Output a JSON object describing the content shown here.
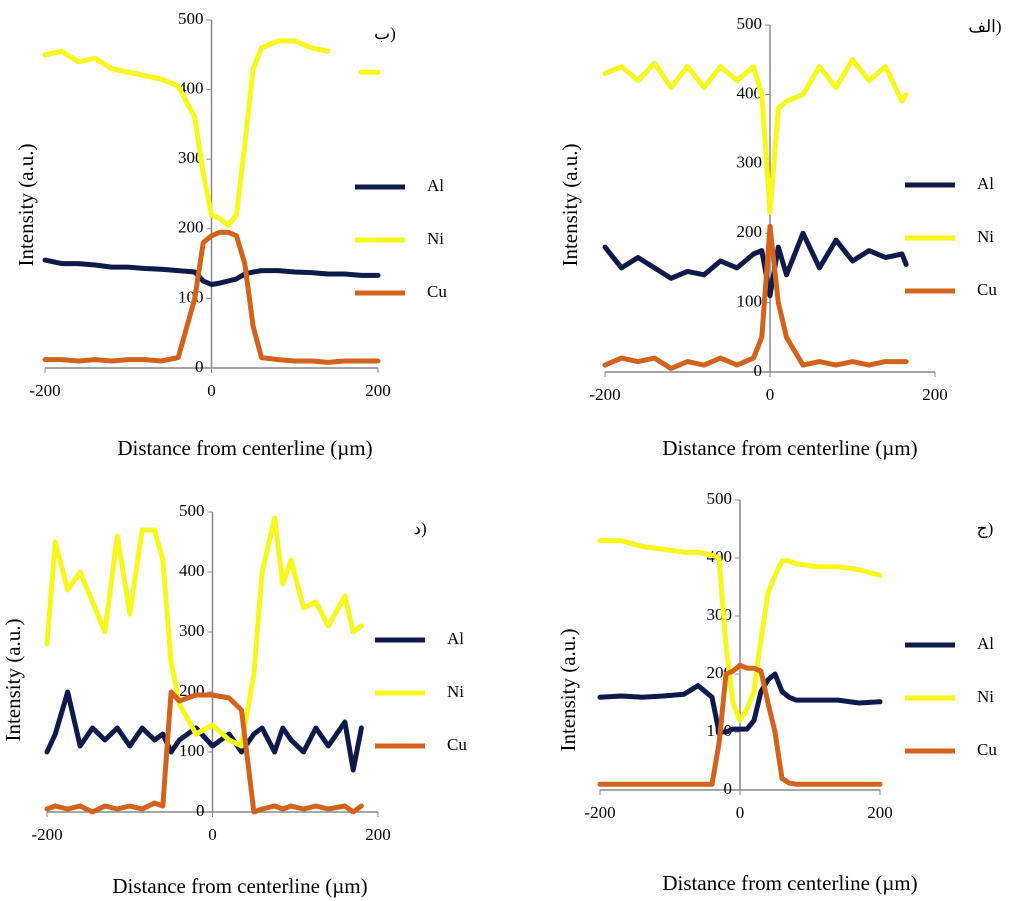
{
  "chart_data": [
    {
      "type": "line",
      "title": "ب)",
      "xlabel": "Distance from centerline (µm)",
      "ylabel": "Intensity (a.u.)",
      "xlim": [
        -200,
        200
      ],
      "xticks": [
        -200,
        0,
        200
      ],
      "ylim": [
        0,
        500
      ],
      "yticks": [
        0,
        100,
        200,
        300,
        400,
        500
      ],
      "grid": false,
      "x": [
        -200,
        -180,
        -160,
        -140,
        -120,
        -100,
        -80,
        -60,
        -40,
        -20,
        -10,
        0,
        10,
        20,
        30,
        40,
        50,
        60,
        80,
        100,
        120,
        140,
        160,
        180,
        200
      ],
      "series": [
        {
          "name": "Al",
          "color": "#0d1a4a",
          "values": [
            155,
            150,
            150,
            148,
            145,
            145,
            143,
            142,
            140,
            138,
            125,
            120,
            122,
            125,
            128,
            135,
            138,
            140,
            140,
            138,
            137,
            135,
            135,
            133,
            133
          ]
        },
        {
          "name": "Ni",
          "color": "#f7f71e",
          "values": [
            450,
            455,
            440,
            445,
            430,
            425,
            420,
            415,
            405,
            360,
            280,
            220,
            215,
            205,
            220,
            320,
            430,
            460,
            470,
            470,
            460,
            455,
            null,
            425,
            425
          ]
        },
        {
          "name": "Cu",
          "color": "#d2621c",
          "values": [
            12,
            12,
            10,
            12,
            10,
            12,
            12,
            10,
            15,
            100,
            180,
            190,
            195,
            195,
            190,
            150,
            60,
            15,
            12,
            10,
            10,
            8,
            10,
            10,
            10
          ]
        }
      ]
    },
    {
      "type": "line",
      "title": "الف)",
      "xlabel": "Distance from centerline (µm)",
      "ylabel": "Intensity (a.u.)",
      "xlim": [
        -200,
        200
      ],
      "xticks": [
        -200,
        0,
        200
      ],
      "ylim": [
        0,
        500
      ],
      "yticks": [
        0,
        100,
        200,
        300,
        400,
        500
      ],
      "grid": false,
      "x": [
        -200,
        -180,
        -160,
        -140,
        -120,
        -100,
        -80,
        -60,
        -40,
        -20,
        -10,
        0,
        10,
        20,
        40,
        60,
        80,
        100,
        120,
        140,
        160,
        165
      ],
      "series": [
        {
          "name": "Al",
          "color": "#0d1a4a",
          "values": [
            180,
            150,
            165,
            150,
            135,
            145,
            140,
            160,
            150,
            170,
            175,
            110,
            180,
            140,
            200,
            150,
            190,
            160,
            175,
            165,
            170,
            155
          ]
        },
        {
          "name": "Ni",
          "color": "#f7f71e",
          "values": [
            430,
            440,
            420,
            445,
            410,
            440,
            410,
            440,
            420,
            440,
            400,
            230,
            380,
            390,
            400,
            440,
            410,
            450,
            420,
            440,
            390,
            400
          ]
        },
        {
          "name": "Cu",
          "color": "#d2621c",
          "values": [
            10,
            20,
            15,
            20,
            5,
            15,
            10,
            20,
            10,
            20,
            50,
            210,
            100,
            50,
            10,
            15,
            10,
            15,
            10,
            15,
            15,
            15
          ]
        }
      ]
    },
    {
      "type": "line",
      "title": "د)",
      "xlabel": "Distance from centerline (µm)",
      "ylabel": "Intensity (a.u.)",
      "xlim": [
        -200,
        200
      ],
      "xticks": [
        -200,
        0,
        200
      ],
      "ylim": [
        0,
        500
      ],
      "yticks": [
        0,
        100,
        200,
        300,
        400,
        500
      ],
      "grid": false,
      "x": [
        -200,
        -190,
        -175,
        -160,
        -145,
        -130,
        -115,
        -100,
        -85,
        -70,
        -60,
        -50,
        -40,
        -20,
        0,
        20,
        35,
        50,
        60,
        75,
        85,
        95,
        110,
        125,
        140,
        160,
        170,
        180
      ],
      "series": [
        {
          "name": "Al",
          "color": "#0d1a4a",
          "values": [
            100,
            130,
            200,
            110,
            140,
            120,
            140,
            110,
            140,
            120,
            130,
            100,
            120,
            140,
            110,
            130,
            100,
            130,
            140,
            100,
            140,
            120,
            100,
            140,
            110,
            150,
            70,
            140
          ]
        },
        {
          "name": "Ni",
          "color": "#f7f71e",
          "values": [
            280,
            450,
            370,
            400,
            350,
            300,
            460,
            330,
            470,
            470,
            420,
            250,
            180,
            130,
            145,
            120,
            110,
            230,
            400,
            490,
            380,
            420,
            340,
            350,
            310,
            360,
            300,
            310
          ]
        },
        {
          "name": "Cu",
          "color": "#d2621c",
          "values": [
            5,
            10,
            5,
            10,
            0,
            10,
            5,
            10,
            5,
            15,
            10,
            200,
            185,
            195,
            195,
            190,
            170,
            0,
            5,
            10,
            5,
            10,
            5,
            10,
            5,
            10,
            0,
            10
          ]
        }
      ]
    },
    {
      "type": "line",
      "title": "ج)",
      "xlabel": "Distance from centerline (µm)",
      "ylabel": "Intensity (a.u.)",
      "xlim": [
        -200,
        200
      ],
      "xticks": [
        -200,
        0,
        200
      ],
      "ylim": [
        0,
        500
      ],
      "yticks": [
        0,
        100,
        200,
        300,
        400,
        500
      ],
      "grid": false,
      "x": [
        -200,
        -170,
        -140,
        -110,
        -80,
        -60,
        -40,
        -30,
        -20,
        -10,
        0,
        10,
        20,
        30,
        40,
        50,
        60,
        70,
        80,
        110,
        140,
        170,
        200
      ],
      "series": [
        {
          "name": "Al",
          "color": "#0d1a4a",
          "values": [
            160,
            162,
            160,
            162,
            165,
            180,
            160,
            100,
            100,
            105,
            105,
            105,
            120,
            170,
            190,
            200,
            170,
            160,
            155,
            155,
            155,
            150,
            152
          ]
        },
        {
          "name": "Ni",
          "color": "#f7f71e",
          "values": [
            430,
            430,
            420,
            415,
            410,
            410,
            405,
            400,
            250,
            150,
            120,
            140,
            170,
            260,
            340,
            370,
            395,
            395,
            390,
            385,
            385,
            380,
            370
          ]
        },
        {
          "name": "Cu",
          "color": "#d2621c",
          "values": [
            10,
            10,
            10,
            10,
            10,
            10,
            10,
            80,
            200,
            205,
            215,
            210,
            210,
            205,
            150,
            100,
            20,
            12,
            10,
            10,
            10,
            10,
            10
          ]
        }
      ]
    }
  ]
}
